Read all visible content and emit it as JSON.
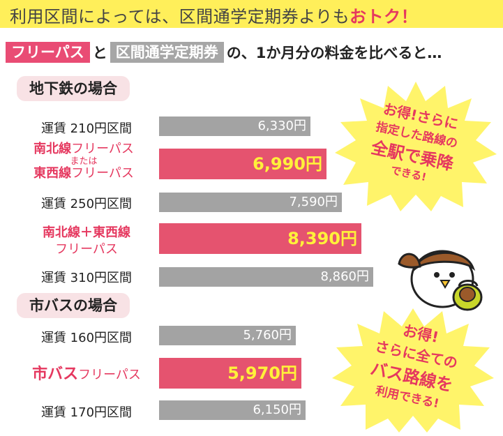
{
  "banner": {
    "lead": "利用区間によっては、区間通学定期券よりも",
    "highlight": "おトク！"
  },
  "compare": {
    "tag1": "フリーパス",
    "and": "と",
    "tag2": "区間通学定期券",
    "rest": "の、1か月分の料金を比べると…"
  },
  "sections": [
    {
      "title": "地下鉄の場合"
    },
    {
      "title": "市バスの場合"
    }
  ],
  "rows": {
    "r1": {
      "label": "運賃 210円区間",
      "value": "6,330円"
    },
    "r2": {
      "label_a": "南北線",
      "label_a2": "フリーパス",
      "label_or": "または",
      "label_b": "東西線",
      "label_b2": "フリーパス",
      "value": "6,990円"
    },
    "r3": {
      "label": "運賃 250円区間",
      "value": "7,590円"
    },
    "r4": {
      "label_a": "南北線＋東西線",
      "label_b": "フリーパス",
      "value": "8,390円"
    },
    "r5": {
      "label": "運賃 310円区間",
      "value": "8,860円"
    },
    "r6": {
      "label": "運賃 160円区間",
      "value": "5,760円"
    },
    "r7": {
      "label_a": "市バス",
      "label_b": "フリーパス",
      "value": "5,970円"
    },
    "r8": {
      "label": "運賃 170円区間",
      "value": "6,150円"
    }
  },
  "burst1": {
    "l1": "お得!さらに",
    "l2": "指定した路線の",
    "l3": "全駅で乗降",
    "l4": "できる!"
  },
  "burst2": {
    "l1": "お得!",
    "l2": "さらに全ての",
    "l3": "バス路線を",
    "l4": "利用できる!"
  },
  "chart_data": [
    {
      "type": "bar",
      "title": "地下鉄の場合",
      "categories": [
        "運賃 210円区間",
        "南北線フリーパス または 東西線フリーパス",
        "運賃 250円区間",
        "南北線＋東西線 フリーパス",
        "運賃 310円区間"
      ],
      "values": [
        6330,
        6990,
        7590,
        8390,
        8860
      ]
    },
    {
      "type": "bar",
      "title": "市バスの場合",
      "categories": [
        "運賃 160円区間",
        "市バス フリーパス",
        "運賃 170円区間"
      ],
      "values": [
        5760,
        5970,
        6150
      ]
    }
  ],
  "colors": {
    "pink": "#e5536f",
    "gray": "#a3a3a3",
    "yellow": "#ffef5a"
  }
}
